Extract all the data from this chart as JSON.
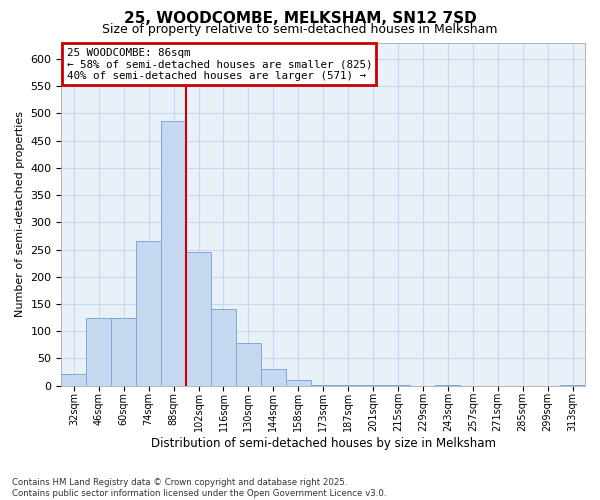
{
  "title1": "25, WOODCOMBE, MELKSHAM, SN12 7SD",
  "title2": "Size of property relative to semi-detached houses in Melksham",
  "xlabel": "Distribution of semi-detached houses by size in Melksham",
  "ylabel": "Number of semi-detached properties",
  "bins": [
    "32sqm",
    "46sqm",
    "60sqm",
    "74sqm",
    "88sqm",
    "102sqm",
    "116sqm",
    "130sqm",
    "144sqm",
    "158sqm",
    "173sqm",
    "187sqm",
    "201sqm",
    "215sqm",
    "229sqm",
    "243sqm",
    "257sqm",
    "271sqm",
    "285sqm",
    "299sqm",
    "313sqm"
  ],
  "values": [
    22,
    125,
    125,
    265,
    485,
    245,
    140,
    78,
    30,
    10,
    2,
    2,
    1,
    1,
    0,
    1,
    0,
    0,
    0,
    0,
    1
  ],
  "bar_color": "#c5d8f0",
  "bar_edge_color": "#7aaadd",
  "grid_color": "#c8d8ee",
  "property_line_color": "#cc0000",
  "property_line_x": 4.5,
  "annotation_line1": "25 WOODCOMBE: 86sqm",
  "annotation_line2": "← 58% of semi-detached houses are smaller (825)",
  "annotation_line3": "40% of semi-detached houses are larger (571) →",
  "annotation_box_facecolor": "#ffffff",
  "annotation_box_edgecolor": "#cc0000",
  "footnote": "Contains HM Land Registry data © Crown copyright and database right 2025.\nContains public sector information licensed under the Open Government Licence v3.0.",
  "ylim": [
    0,
    630
  ],
  "yticks": [
    0,
    50,
    100,
    150,
    200,
    250,
    300,
    350,
    400,
    450,
    500,
    550,
    600
  ],
  "bg_color": "#e8f0f8",
  "fig_color": "#ffffff"
}
